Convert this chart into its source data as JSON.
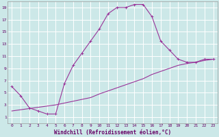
{
  "xlabel": "Windchill (Refroidissement éolien,°C)",
  "bg_color": "#cce8e8",
  "grid_color": "#b0d4d4",
  "line_color": "#993399",
  "xlim": [
    -0.5,
    23.5
  ],
  "ylim": [
    0,
    20
  ],
  "xticks": [
    0,
    1,
    2,
    3,
    4,
    5,
    6,
    7,
    8,
    9,
    10,
    11,
    12,
    13,
    14,
    15,
    16,
    17,
    18,
    19,
    20,
    21,
    22,
    23
  ],
  "yticks": [
    1,
    3,
    5,
    7,
    9,
    11,
    13,
    15,
    17,
    19
  ],
  "curve1_x": [
    0,
    1,
    2,
    3,
    4,
    5,
    6,
    7,
    8,
    9,
    10,
    11,
    12,
    13,
    14,
    15,
    16,
    17,
    18,
    19,
    20,
    21,
    22,
    23
  ],
  "curve1_y": [
    6.0,
    4.5,
    2.5,
    2.0,
    1.5,
    1.5,
    6.5,
    9.5,
    11.5,
    13.5,
    15.5,
    18.0,
    19.0,
    19.0,
    19.5,
    19.5,
    17.5,
    13.5,
    12.0,
    10.5,
    10.0,
    10.0,
    10.5,
    10.5
  ],
  "curve2_x": [
    0,
    1,
    2,
    3,
    4,
    5,
    6,
    7,
    8,
    9,
    10,
    11,
    12,
    13,
    14,
    15,
    16,
    17,
    18,
    19,
    20,
    21,
    22,
    23
  ],
  "curve2_y": [
    2.0,
    2.2,
    2.4,
    2.6,
    2.8,
    3.0,
    3.3,
    3.6,
    3.9,
    4.2,
    4.8,
    5.3,
    5.8,
    6.3,
    6.8,
    7.3,
    8.0,
    8.5,
    9.0,
    9.5,
    9.8,
    10.0,
    10.3,
    10.5
  ],
  "marker": "+"
}
